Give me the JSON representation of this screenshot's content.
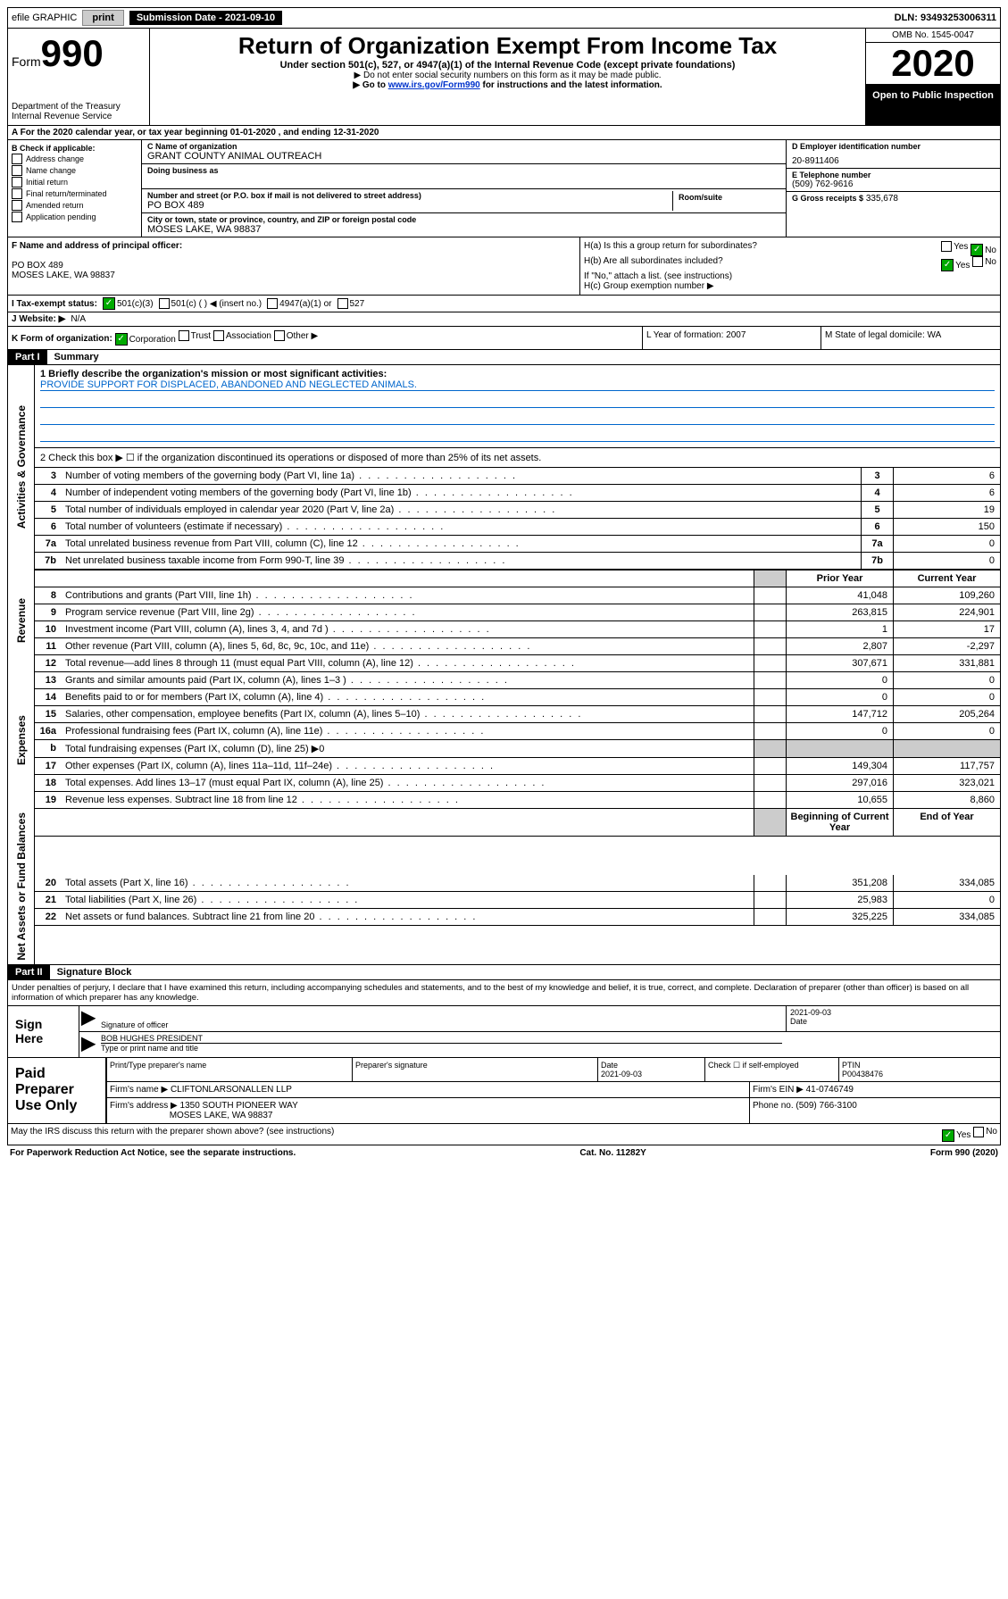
{
  "topbar": {
    "efile": "efile GRAPHIC",
    "print": "print",
    "submission": "Submission Date - 2021-09-10",
    "dln": "DLN: 93493253006311"
  },
  "header": {
    "form_prefix": "Form",
    "form_number": "990",
    "dept": "Department of the Treasury\nInternal Revenue Service",
    "title": "Return of Organization Exempt From Income Tax",
    "subtitle": "Under section 501(c), 527, or 4947(a)(1) of the Internal Revenue Code (except private foundations)",
    "note1": "▶ Do not enter social security numbers on this form as it may be made public.",
    "note2_pre": "▶ Go to ",
    "note2_link": "www.irs.gov/Form990",
    "note2_post": " for instructions and the latest information.",
    "omb": "OMB No. 1545-0047",
    "year": "2020",
    "open": "Open to Public Inspection"
  },
  "row_a": "A   For the 2020 calendar year, or tax year beginning 01-01-2020    , and ending 12-31-2020",
  "box_b": {
    "label": "B Check if applicable:",
    "items": [
      "Address change",
      "Name change",
      "Initial return",
      "Final return/terminated",
      "Amended return",
      "Application pending"
    ]
  },
  "box_c": {
    "name_label": "C Name of organization",
    "name": "GRANT COUNTY ANIMAL OUTREACH",
    "dba_label": "Doing business as",
    "dba": "",
    "addr_label": "Number and street (or P.O. box if mail is not delivered to street address)",
    "room_label": "Room/suite",
    "addr": "PO BOX 489",
    "city_label": "City or town, state or province, country, and ZIP or foreign postal code",
    "city": "MOSES LAKE, WA  98837"
  },
  "box_d": {
    "ein_label": "D Employer identification number",
    "ein": "20-8911406",
    "tel_label": "E Telephone number",
    "tel": "(509) 762-9616",
    "gross_label": "G Gross receipts $",
    "gross": "335,678"
  },
  "box_f": {
    "label": "F  Name and address of principal officer:",
    "addr1": "PO BOX 489",
    "addr2": "MOSES LAKE, WA  98837"
  },
  "box_h": {
    "ha": "H(a)  Is this a group return for subordinates?",
    "hb": "H(b)  Are all subordinates included?",
    "hb_note": "If \"No,\" attach a list. (see instructions)",
    "hc": "H(c)  Group exemption number ▶",
    "yes": "Yes",
    "no": "No"
  },
  "row_i": {
    "label": "I    Tax-exempt status:",
    "opt1": "501(c)(3)",
    "opt2": "501(c) (  ) ◀ (insert no.)",
    "opt3": "4947(a)(1) or",
    "opt4": "527"
  },
  "row_j": {
    "label": "J   Website: ▶",
    "val": "N/A"
  },
  "row_k": {
    "label": "K Form of organization:",
    "opts": [
      "Corporation",
      "Trust",
      "Association",
      "Other ▶"
    ],
    "l": "L Year of formation: 2007",
    "m": "M State of legal domicile: WA"
  },
  "part1": {
    "label": "Part I",
    "title": "Summary",
    "l1_label": "1  Briefly describe the organization's mission or most significant activities:",
    "l1_val": "PROVIDE SUPPORT FOR DISPLACED, ABANDONED AND NEGLECTED ANIMALS.",
    "l2": "2   Check this box ▶ ☐  if the organization discontinued its operations or disposed of more than 25% of its net assets.",
    "side_gov": "Activities & Governance",
    "side_rev": "Revenue",
    "side_exp": "Expenses",
    "side_net": "Net Assets or Fund Balances",
    "prior": "Prior Year",
    "current": "Current Year",
    "begin": "Beginning of Current Year",
    "end": "End of Year",
    "lines_single": [
      {
        "n": "3",
        "t": "Number of voting members of the governing body (Part VI, line 1a)",
        "v": "6"
      },
      {
        "n": "4",
        "t": "Number of independent voting members of the governing body (Part VI, line 1b)",
        "v": "6"
      },
      {
        "n": "5",
        "t": "Total number of individuals employed in calendar year 2020 (Part V, line 2a)",
        "v": "19"
      },
      {
        "n": "6",
        "t": "Total number of volunteers (estimate if necessary)",
        "v": "150"
      },
      {
        "n": "7a",
        "t": "Total unrelated business revenue from Part VIII, column (C), line 12",
        "v": "0"
      },
      {
        "n": "7b",
        "t": "Net unrelated business taxable income from Form 990-T, line 39",
        "v": "0"
      }
    ],
    "lines_rev": [
      {
        "n": "8",
        "t": "Contributions and grants (Part VIII, line 1h)",
        "p": "41,048",
        "c": "109,260"
      },
      {
        "n": "9",
        "t": "Program service revenue (Part VIII, line 2g)",
        "p": "263,815",
        "c": "224,901"
      },
      {
        "n": "10",
        "t": "Investment income (Part VIII, column (A), lines 3, 4, and 7d )",
        "p": "1",
        "c": "17"
      },
      {
        "n": "11",
        "t": "Other revenue (Part VIII, column (A), lines 5, 6d, 8c, 9c, 10c, and 11e)",
        "p": "2,807",
        "c": "-2,297"
      },
      {
        "n": "12",
        "t": "Total revenue—add lines 8 through 11 (must equal Part VIII, column (A), line 12)",
        "p": "307,671",
        "c": "331,881"
      }
    ],
    "lines_exp": [
      {
        "n": "13",
        "t": "Grants and similar amounts paid (Part IX, column (A), lines 1–3 )",
        "p": "0",
        "c": "0"
      },
      {
        "n": "14",
        "t": "Benefits paid to or for members (Part IX, column (A), line 4)",
        "p": "0",
        "c": "0"
      },
      {
        "n": "15",
        "t": "Salaries, other compensation, employee benefits (Part IX, column (A), lines 5–10)",
        "p": "147,712",
        "c": "205,264"
      },
      {
        "n": "16a",
        "t": "Professional fundraising fees (Part IX, column (A), line 11e)",
        "p": "0",
        "c": "0"
      },
      {
        "n": "b",
        "t": "Total fundraising expenses (Part IX, column (D), line 25) ▶0",
        "p": "",
        "c": "",
        "shade": true
      },
      {
        "n": "17",
        "t": "Other expenses (Part IX, column (A), lines 11a–11d, 11f–24e)",
        "p": "149,304",
        "c": "117,757"
      },
      {
        "n": "18",
        "t": "Total expenses. Add lines 13–17 (must equal Part IX, column (A), line 25)",
        "p": "297,016",
        "c": "323,021"
      },
      {
        "n": "19",
        "t": "Revenue less expenses. Subtract line 18 from line 12",
        "p": "10,655",
        "c": "8,860"
      }
    ],
    "lines_net": [
      {
        "n": "20",
        "t": "Total assets (Part X, line 16)",
        "p": "351,208",
        "c": "334,085"
      },
      {
        "n": "21",
        "t": "Total liabilities (Part X, line 26)",
        "p": "25,983",
        "c": "0"
      },
      {
        "n": "22",
        "t": "Net assets or fund balances. Subtract line 21 from line 20",
        "p": "325,225",
        "c": "334,085"
      }
    ]
  },
  "part2": {
    "label": "Part II",
    "title": "Signature Block",
    "declaration": "Under penalties of perjury, I declare that I have examined this return, including accompanying schedules and statements, and to the best of my knowledge and belief, it is true, correct, and complete. Declaration of preparer (other than officer) is based on all information of which preparer has any knowledge.",
    "sign_here": "Sign Here",
    "sig_officer": "Signature of officer",
    "date": "2021-09-03",
    "date_label": "Date",
    "officer_name": "BOB HUGHES  PRESIDENT",
    "type_name": "Type or print name and title",
    "paid_prep": "Paid Preparer Use Only",
    "prep_name_label": "Print/Type preparer's name",
    "prep_sig_label": "Preparer's signature",
    "prep_date": "2021-09-03",
    "check_if": "Check ☐ if self-employed",
    "ptin_label": "PTIN",
    "ptin": "P00438476",
    "firm_name_label": "Firm's name      ▶",
    "firm_name": "CLIFTONLARSONALLEN LLP",
    "firm_ein_label": "Firm's EIN ▶",
    "firm_ein": "41-0746749",
    "firm_addr_label": "Firm's address ▶",
    "firm_addr1": "1350 SOUTH PIONEER WAY",
    "firm_addr2": "MOSES LAKE, WA  98837",
    "phone_label": "Phone no.",
    "phone": "(509) 766-3100",
    "discuss": "May the IRS discuss this return with the preparer shown above? (see instructions)"
  },
  "footer": {
    "left": "For Paperwork Reduction Act Notice, see the separate instructions.",
    "center": "Cat. No. 11282Y",
    "right": "Form 990 (2020)"
  }
}
